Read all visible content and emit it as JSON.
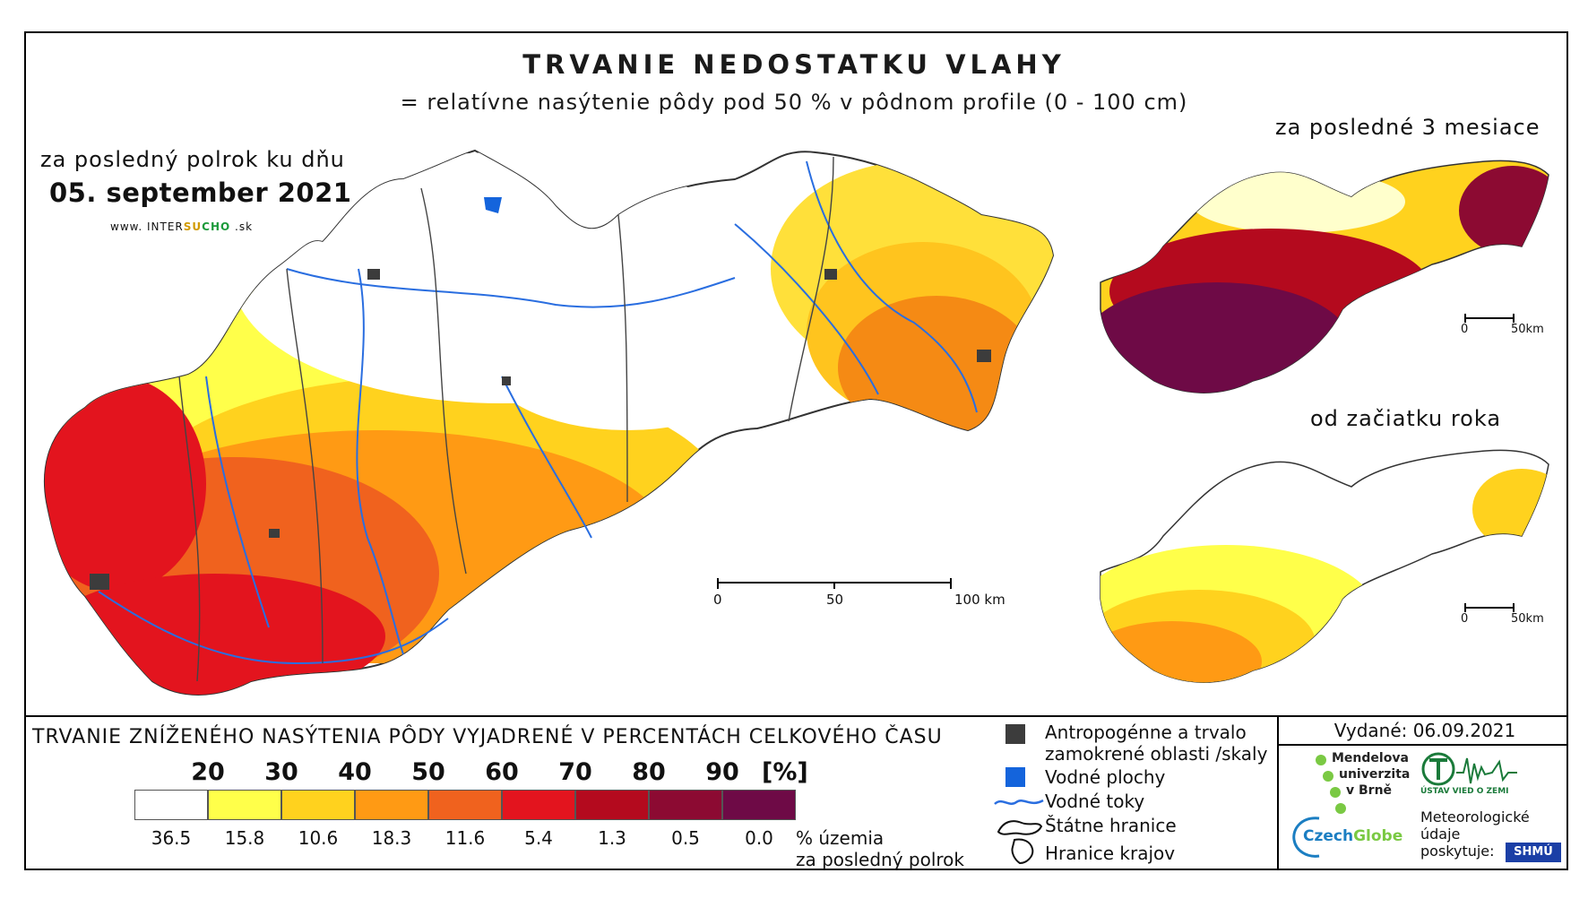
{
  "title": "TRVANIE NEDOSTATKU VLAHY",
  "subtitle": "= relatívne nasýtenie pôdy pod 50 % v pôdnom profile (0 - 100 cm)",
  "main_map": {
    "period_label": "za posledný polrok ku dňu",
    "date": "05. september 2021",
    "website": {
      "prefix": "www. INTER",
      "mid1": "SU",
      "mid2": "CHO",
      "suffix": " .sk"
    },
    "scale": {
      "tick0": "0",
      "tick1": "50",
      "tick2": "100 km"
    }
  },
  "inset_top": {
    "title": "za posledné 3 mesiace",
    "scale0": "0",
    "scale1": "50km"
  },
  "inset_bottom": {
    "title": "od začiatku roka",
    "scale0": "0",
    "scale1": "50km"
  },
  "legend": {
    "title": "TRVANIE ZNÍŽENÉHO NASÝTENIA PÔDY VYJADRENÉ V PERCENTÁCH CELKOVÉHO ČASU",
    "thresholds": [
      "20",
      "30",
      "40",
      "50",
      "60",
      "70",
      "80",
      "90"
    ],
    "unit": "[%]",
    "classes": [
      {
        "color": "#ffffff",
        "share": "36.5"
      },
      {
        "color": "#ffff4a",
        "share": "15.8"
      },
      {
        "color": "#ffd21e",
        "share": "10.6"
      },
      {
        "color": "#ff9a14",
        "share": "18.3"
      },
      {
        "color": "#f0621e",
        "share": "11.6"
      },
      {
        "color": "#e3141e",
        "share": "5.4"
      },
      {
        "color": "#b40a1e",
        "share": "1.3"
      },
      {
        "color": "#8c0a32",
        "share": "0.5"
      },
      {
        "color": "#6e0a46",
        "share": "0.0"
      }
    ],
    "share_caption_1": "% územia",
    "share_caption_2": "za posledný polrok"
  },
  "key": {
    "anthropogenic_1": "Antropogénne a trvalo",
    "anthropogenic_2": "zamokrené oblasti /skaly",
    "water_bodies": "Vodné plochy",
    "rivers": "Vodné toky",
    "state_border": "Štátne hranice",
    "region_border": "Hranice krajov"
  },
  "credits": {
    "issued": "Vydané: 06.09.2021",
    "mendel_1": "Mendelova",
    "mendel_2": "univerzita",
    "mendel_3": "v Brně",
    "ustav": "ÚSTAV VIED O ZEMI",
    "czechglobe_1": "Czech",
    "czechglobe_2": "Globe",
    "meteo_1": "Meteorologické",
    "meteo_2": "údaje",
    "meteo_3": "poskytuje:",
    "shmu": "SHMÚ"
  },
  "colors": {
    "white": "#ffffff",
    "yellow": "#ffff4a",
    "gold": "#ffd21e",
    "orange": "#ff9a14",
    "dark_orange": "#f0621e",
    "red": "#e3141e",
    "dark_red": "#b40a1e",
    "crimson": "#8c0a32",
    "purple": "#6e0a46",
    "urban": "#3c3c3c",
    "water": "#1464dc",
    "river": "#2a6ee0"
  }
}
